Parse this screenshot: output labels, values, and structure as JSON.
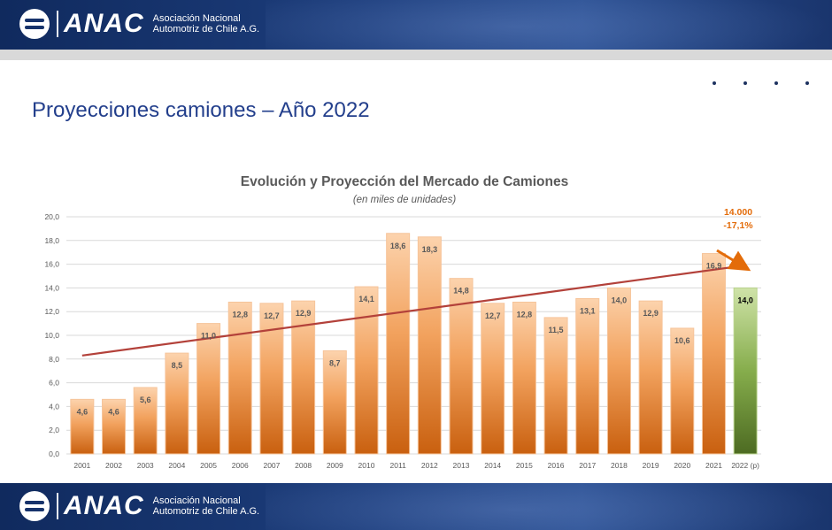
{
  "brand": {
    "logo_text": "ANAC",
    "org_line1": "Asociación Nacional",
    "org_line2": "Automotriz de Chile A.G."
  },
  "slide": {
    "title": "Proyecciones camiones – Año 2022"
  },
  "colors": {
    "banner": "#17336b",
    "title": "#233f8c",
    "bar_orange": "#e07820",
    "bar_green": "#6f9a3a",
    "trend": "#b3413a",
    "annotation": "#e36c0a"
  },
  "chart_data": {
    "type": "bar",
    "title": "Evolución y Proyección del Mercado de Camiones",
    "subtitle": "(en miles de unidades)",
    "xlabel": "",
    "ylabel": "",
    "ylim": [
      0,
      20
    ],
    "y_ticks": [
      "0,0",
      "2,0",
      "4,0",
      "6,0",
      "8,0",
      "10,0",
      "12,0",
      "14,0",
      "16,0",
      "18,0",
      "20,0"
    ],
    "grid": true,
    "categories": [
      "2001",
      "2002",
      "2003",
      "2004",
      "2005",
      "2006",
      "2007",
      "2008",
      "2009",
      "2010",
      "2011",
      "2012",
      "2013",
      "2014",
      "2015",
      "2016",
      "2017",
      "2018",
      "2019",
      "2020",
      "2021",
      "2022 (p)"
    ],
    "values": [
      4.6,
      4.6,
      5.6,
      8.5,
      11.0,
      12.8,
      12.7,
      12.9,
      8.7,
      14.1,
      18.6,
      18.3,
      14.8,
      12.7,
      12.8,
      11.5,
      13.1,
      14.0,
      12.9,
      10.6,
      16.9,
      14.0
    ],
    "value_labels": [
      "4,6",
      "4,6",
      "5,6",
      "8,5",
      "11,0",
      "12,8",
      "12,7",
      "12,9",
      "8,7",
      "14,1",
      "18,6",
      "18,3",
      "14,8",
      "12,7",
      "12,8",
      "11,5",
      "13,1",
      "14,0",
      "12,9",
      "10,6",
      "16,9",
      "14,0"
    ],
    "projected_index": 21,
    "trendline": {
      "start_value": 8.3,
      "end_value": 15.9
    },
    "annotation": {
      "line1": "14.000",
      "line2": "-17,1%"
    }
  }
}
